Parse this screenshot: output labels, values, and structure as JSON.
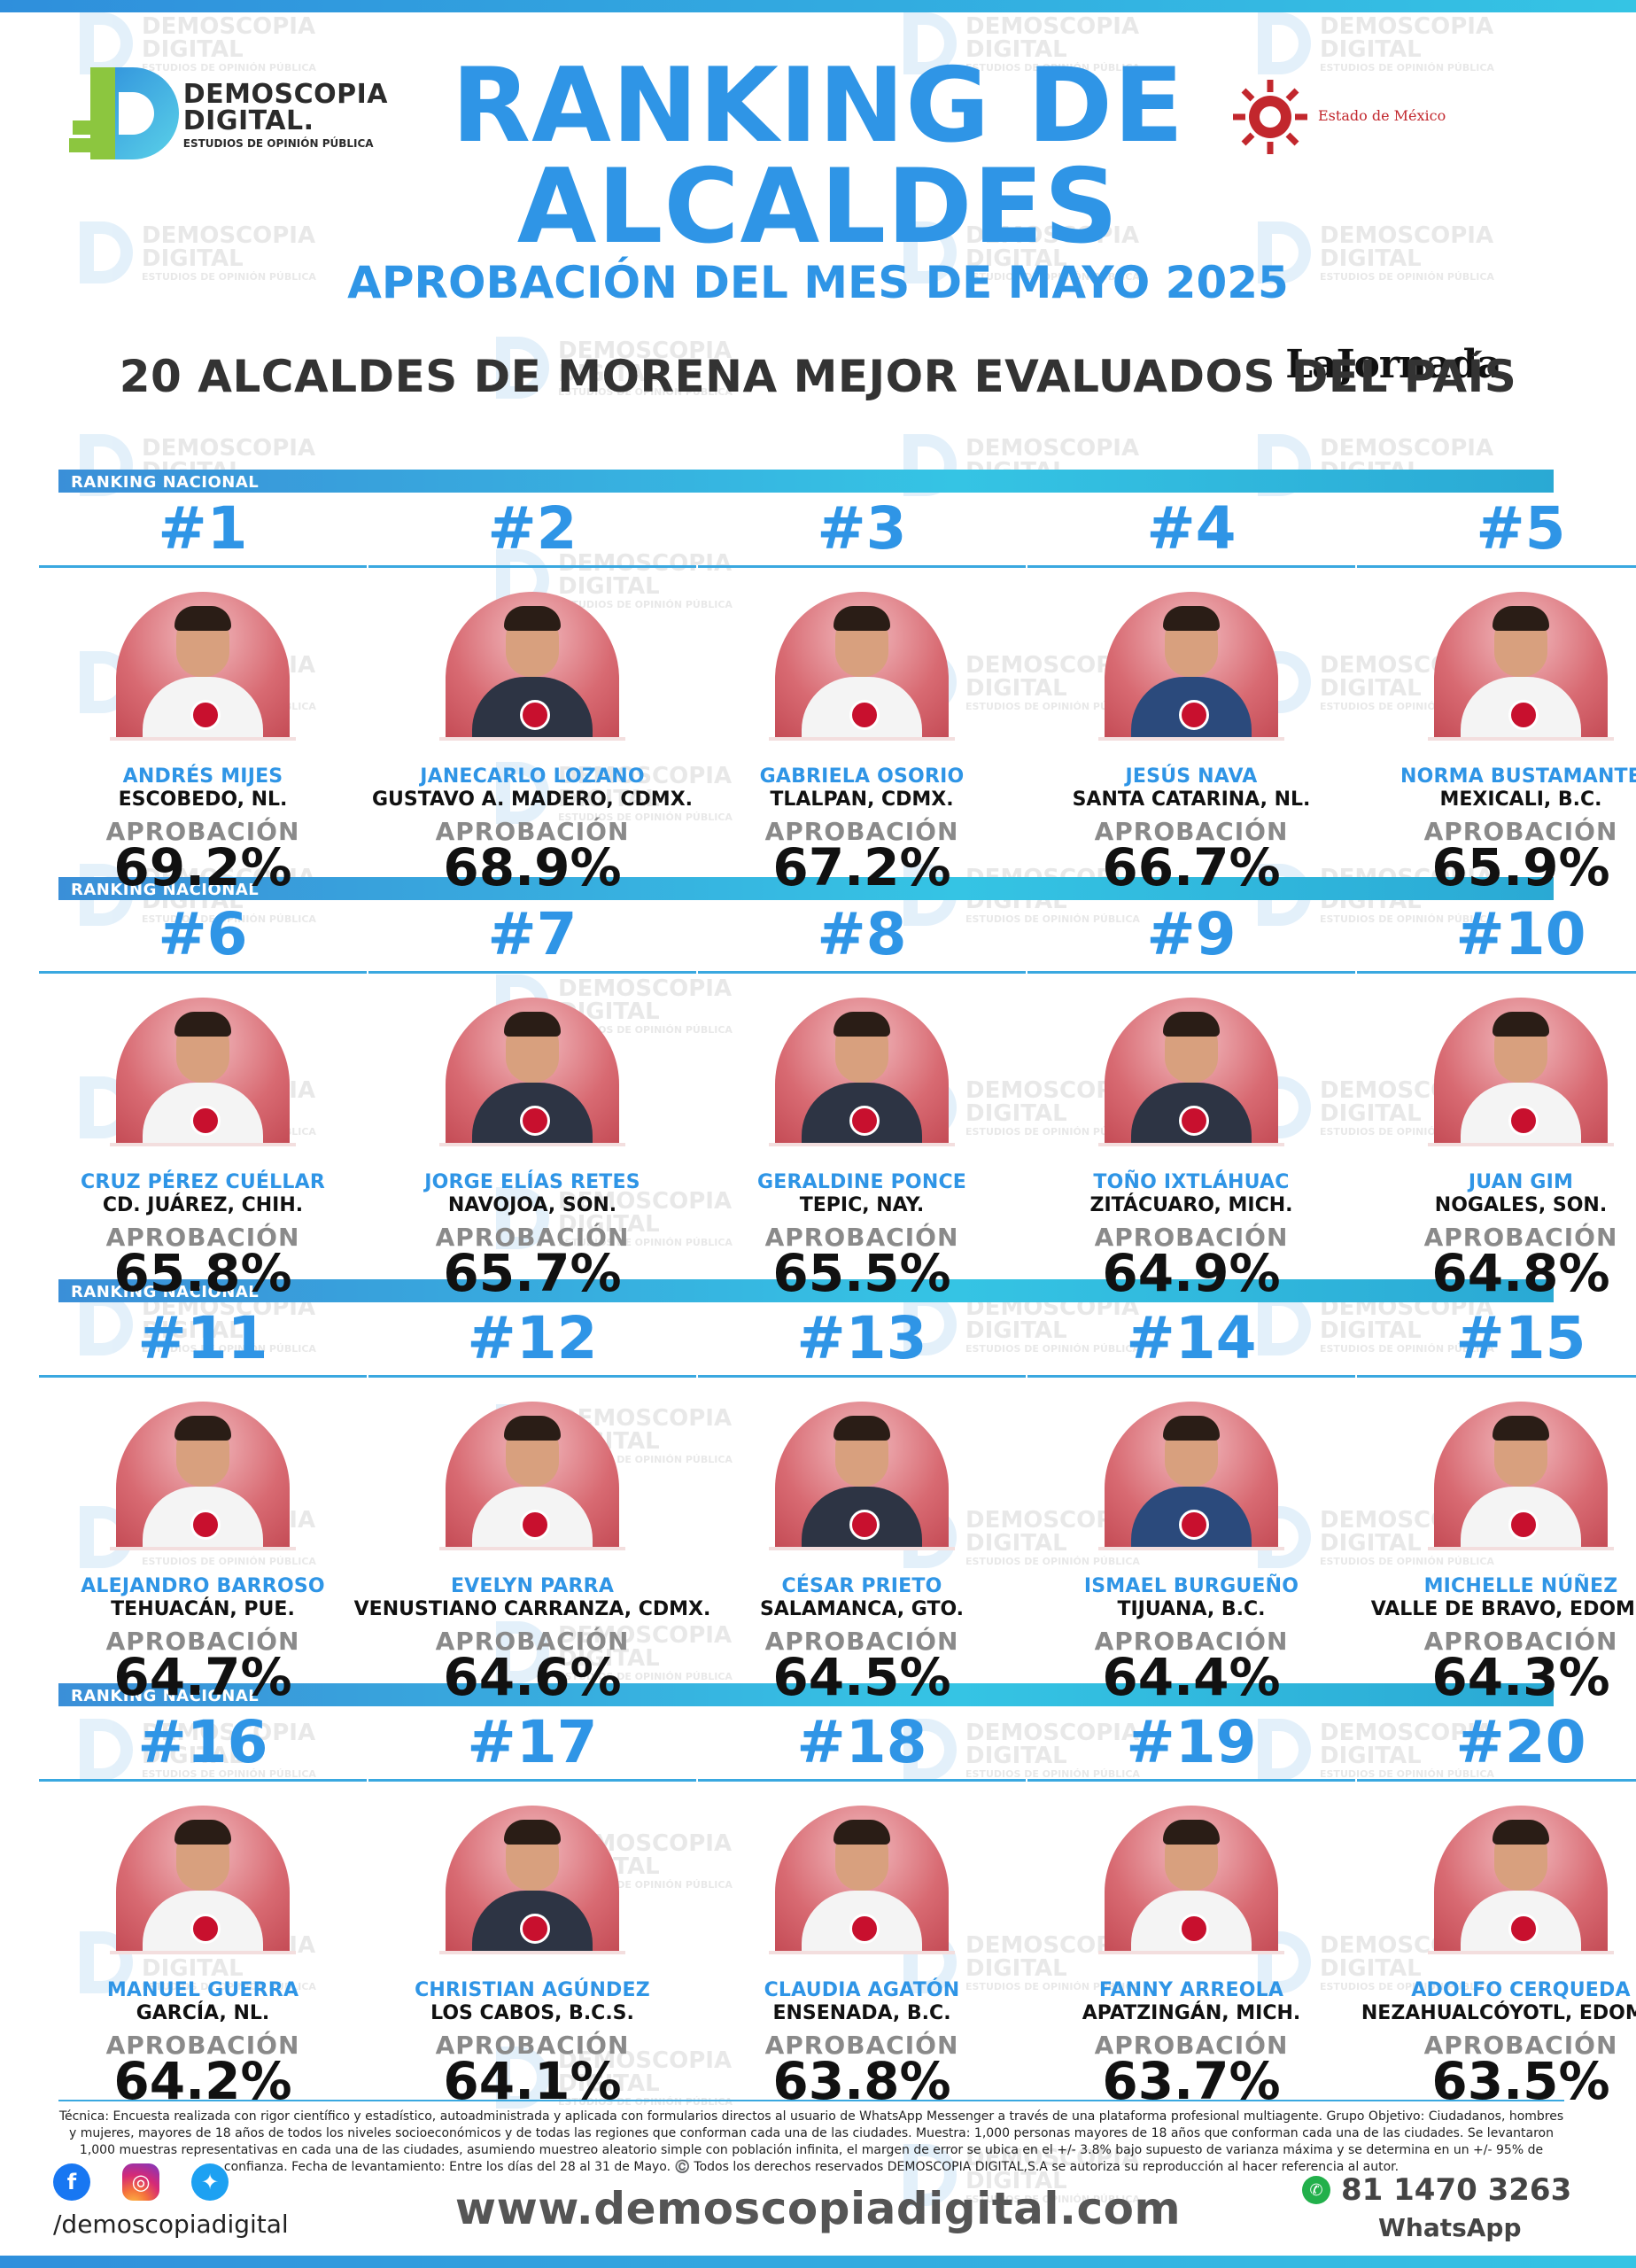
{
  "header": {
    "logo_left": {
      "line1": "DEMOSCOPIA",
      "line2": "DIGITAL.",
      "line3": "ESTUDIOS DE OPINIÓN PÚBLICA"
    },
    "logo_right": {
      "name": "LaJornada",
      "sub": "Estado de México"
    },
    "title_line1": "RANKING DE",
    "title_line2": "ALCALDES",
    "subtitle": "APROBACIÓN DEL MES DE MAYO 2025",
    "heading": "20 ALCALDES DE MORENA MEJOR EVALUADOS DEL PAÍS"
  },
  "watermark": {
    "line1": "DEMOSCOPIA",
    "line2": "DIGITAL",
    "line3": "ESTUDIOS DE OPINIÓN PÚBLICA"
  },
  "band_label": "RANKING NACIONAL",
  "approval_label": "APROBACIÓN",
  "colors": {
    "accent": "#2f95e6",
    "band_start": "#3a8fd8",
    "band_end": "#35c4e4",
    "photo_bg": "#d86a72",
    "morena": "#c8102e"
  },
  "mayors": [
    {
      "rank": "#1",
      "name": "ANDRÉS MIJES",
      "city": "ESCOBEDO, NL.",
      "approval": "69.2%"
    },
    {
      "rank": "#2",
      "name": "JANECARLO LOZANO",
      "city": "GUSTAVO A. MADERO, CDMX.",
      "approval": "68.9%"
    },
    {
      "rank": "#3",
      "name": "GABRIELA OSORIO",
      "city": "TLALPAN, CDMX.",
      "approval": "67.2%"
    },
    {
      "rank": "#4",
      "name": "JESÚS NAVA",
      "city": "SANTA CATARINA, NL.",
      "approval": "66.7%"
    },
    {
      "rank": "#5",
      "name": "NORMA BUSTAMANTE",
      "city": "MEXICALI, B.C.",
      "approval": "65.9%"
    },
    {
      "rank": "#6",
      "name": "CRUZ PÉREZ CUÉLLAR",
      "city": "CD. JUÁREZ, CHIH.",
      "approval": "65.8%"
    },
    {
      "rank": "#7",
      "name": "JORGE ELÍAS RETES",
      "city": "NAVOJOA, SON.",
      "approval": "65.7%"
    },
    {
      "rank": "#8",
      "name": "GERALDINE PONCE",
      "city": "TEPIC, NAY.",
      "approval": "65.5%"
    },
    {
      "rank": "#9",
      "name": "TOÑO IXTLÁHUAC",
      "city": "ZITÁCUARO, MICH.",
      "approval": "64.9%"
    },
    {
      "rank": "#10",
      "name": "JUAN GIM",
      "city": "NOGALES, SON.",
      "approval": "64.8%"
    },
    {
      "rank": "#11",
      "name": "ALEJANDRO BARROSO",
      "city": "TEHUACÁN, PUE.",
      "approval": "64.7%"
    },
    {
      "rank": "#12",
      "name": "EVELYN PARRA",
      "city": "VENUSTIANO CARRANZA, CDMX.",
      "approval": "64.6%"
    },
    {
      "rank": "#13",
      "name": "CÉSAR PRIETO",
      "city": "SALAMANCA, GTO.",
      "approval": "64.5%"
    },
    {
      "rank": "#14",
      "name": "ISMAEL BURGUEÑO",
      "city": "TIJUANA, B.C.",
      "approval": "64.4%"
    },
    {
      "rank": "#15",
      "name": "MICHELLE NÚÑEZ",
      "city": "VALLE DE BRAVO, EDOMEX.",
      "approval": "64.3%"
    },
    {
      "rank": "#16",
      "name": "MANUEL GUERRA",
      "city": "GARCÍA, NL.",
      "approval": "64.2%"
    },
    {
      "rank": "#17",
      "name": "CHRISTIAN AGÚNDEZ",
      "city": "LOS CABOS, B.C.S.",
      "approval": "64.1%"
    },
    {
      "rank": "#18",
      "name": "CLAUDIA AGATÓN",
      "city": "ENSENADA, B.C.",
      "approval": "63.8%"
    },
    {
      "rank": "#19",
      "name": "FANNY ARREOLA",
      "city": "APATZINGÁN, MICH.",
      "approval": "63.7%"
    },
    {
      "rank": "#20",
      "name": "ADOLFO CERQUEDA",
      "city": "NEZAHUALCÓYOTL, EDOMEX.",
      "approval": "63.5%"
    }
  ],
  "footer": {
    "notes": "Técnica: Encuesta realizada con rigor científico y estadístico, autoadministrada y aplicada con formularios directos al usuario de WhatsApp Messenger a través de una plataforma profesional multiagente. Grupo Objetivo: Ciudadanos, hombres y mujeres, mayores de 18 años de todos los niveles socioeconómicos y de todas las regiones que conforman cada una de las ciudades. Muestra: 1,000 personas mayores de 18 años que conforman cada una de las ciudades. Se levantaron 1,000 muestras representativas en cada una de las ciudades, asumiendo muestreo aleatorio simple con población infinita, el margen de error se ubica en el +/- 3.8% bajo supuesto de varianza máxima y se determina en un +/- 95% de confianza. Fecha de levantamiento: Entre los días del 28 al 31 de Mayo. ©️ Todos los derechos reservados DEMOSCOPIA DIGITAL,S.A se autoriza su reproducción al hacer referencia al autor.",
    "handle": "/demoscopiadigital",
    "website": "www.demoscopiadigital.com",
    "phone": "81 1470 3263",
    "phone_label": "WhatsApp"
  }
}
